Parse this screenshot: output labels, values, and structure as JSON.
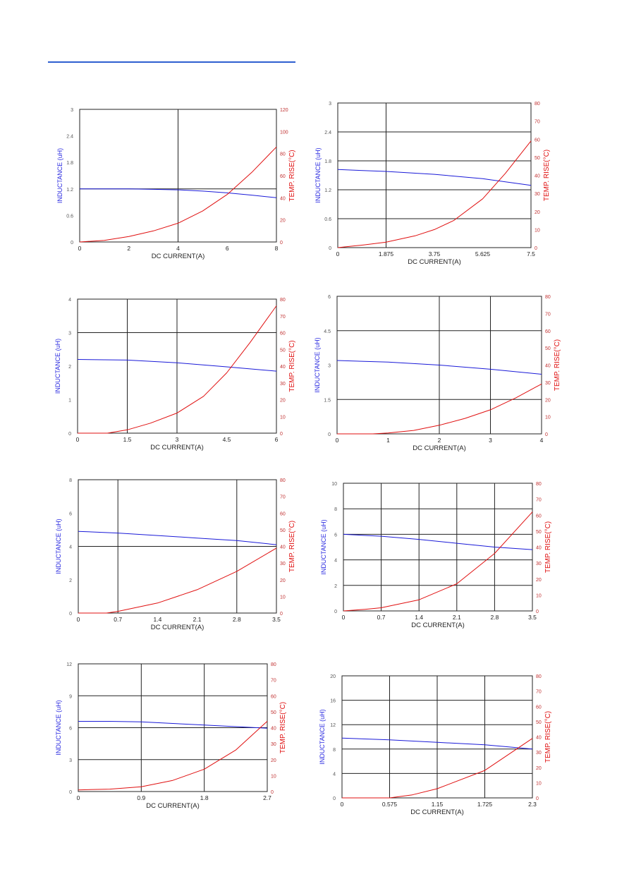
{
  "page": {
    "accent_color": "#2f5fd0"
  },
  "colors": {
    "inductance": "#1a1ad8",
    "temp": "#e01010",
    "left_label": "#2a2ae0",
    "right_label": "#e01010"
  },
  "chart_data": [
    {
      "type": "line",
      "xlabel": "DC CURRENT(A)",
      "ylabel": "INDUCTANCE (uH)",
      "y2label": "TEMP. RISE(°C)",
      "xlim": [
        0,
        8
      ],
      "ylim": [
        0,
        3
      ],
      "y2lim": [
        0,
        120
      ],
      "xticks": [
        "0",
        "2",
        "4",
        "6",
        "8"
      ],
      "yticks": [
        "0",
        "0.6",
        "1.2",
        "1.8",
        "2.4",
        "3"
      ],
      "y2ticks": [
        "0",
        "20",
        "40",
        "60",
        "80",
        "100",
        "120"
      ],
      "vgrid": [
        4
      ],
      "hgrid": [
        1.2
      ],
      "series": [
        {
          "axis": "left",
          "x": [
            0,
            1,
            2,
            3,
            4,
            5,
            6,
            7,
            8
          ],
          "values": [
            1.2,
            1.2,
            1.2,
            1.19,
            1.18,
            1.15,
            1.11,
            1.06,
            1.0
          ]
        },
        {
          "axis": "right",
          "x": [
            0,
            1,
            2,
            3,
            4,
            5,
            6,
            7,
            8
          ],
          "values": [
            0,
            1.5,
            5,
            10,
            17,
            28,
            43,
            63,
            86
          ]
        }
      ]
    },
    {
      "type": "line",
      "xlabel": "DC CURRENT(A)",
      "ylabel": "INDUCTANCE (uH)",
      "y2label": "TEMP. RISE(°C)",
      "xlim": [
        0,
        7.5
      ],
      "ylim": [
        0,
        3
      ],
      "y2lim": [
        0,
        80
      ],
      "xticks": [
        "0",
        "1.875",
        "3.75",
        "5.625",
        "7.5"
      ],
      "yticks": [
        "0",
        "0.6",
        "1.2",
        "1.8",
        "2.4",
        "3"
      ],
      "y2ticks": [
        "0",
        "10",
        "20",
        "30",
        "40",
        "50",
        "60",
        "70",
        "80"
      ],
      "vgrid": [
        1.875
      ],
      "hgrid": [
        0.6,
        1.2,
        1.8,
        2.4
      ],
      "series": [
        {
          "axis": "left",
          "x": [
            0,
            1.875,
            3.75,
            5.625,
            7.5
          ],
          "values": [
            1.62,
            1.58,
            1.52,
            1.43,
            1.29
          ]
        },
        {
          "axis": "right",
          "x": [
            0,
            1,
            1.875,
            3,
            3.75,
            4.5,
            5.625,
            6.5,
            7.5
          ],
          "values": [
            0,
            1.5,
            3,
            6.5,
            10,
            15,
            27,
            41,
            59
          ]
        }
      ]
    },
    {
      "type": "line",
      "xlabel": "DC CURRENT(A)",
      "ylabel": "INDUCTANCE (uH)",
      "y2label": "TEMP. RISE(°C)",
      "xlim": [
        0,
        6
      ],
      "ylim": [
        0,
        4
      ],
      "y2lim": [
        0,
        80
      ],
      "xticks": [
        "0",
        "1.5",
        "3",
        "4.5",
        "6"
      ],
      "yticks": [
        "0",
        "1",
        "2",
        "3",
        "4"
      ],
      "y2ticks": [
        "0",
        "10",
        "20",
        "30",
        "40",
        "50",
        "60",
        "70",
        "80"
      ],
      "vgrid": [
        1.5,
        3
      ],
      "hgrid": [
        3
      ],
      "series": [
        {
          "axis": "left",
          "x": [
            0,
            1.5,
            3,
            4.5,
            6
          ],
          "values": [
            2.2,
            2.18,
            2.1,
            1.98,
            1.85
          ]
        },
        {
          "axis": "right",
          "x": [
            0,
            0.9,
            1.5,
            2.2,
            3,
            3.8,
            4.5,
            5.2,
            6
          ],
          "values": [
            0,
            0,
            2,
            6,
            12,
            22,
            36,
            54,
            76
          ]
        }
      ]
    },
    {
      "type": "line",
      "xlabel": "DC CURRENT(A)",
      "ylabel": "INDUCTANCE (uH)",
      "y2label": "TEMP. RISE(°C)",
      "xlim": [
        0,
        4
      ],
      "ylim": [
        0,
        6
      ],
      "y2lim": [
        0,
        80
      ],
      "xticks": [
        "0",
        "1",
        "2",
        "3",
        "4"
      ],
      "yticks": [
        "0",
        "1.5",
        "3",
        "4.5",
        "6"
      ],
      "y2ticks": [
        "0",
        "10",
        "20",
        "30",
        "40",
        "50",
        "60",
        "70",
        "80"
      ],
      "vgrid": [
        2,
        3
      ],
      "hgrid": [
        1.5,
        4.5
      ],
      "series": [
        {
          "axis": "left",
          "x": [
            0,
            1,
            2,
            3,
            4
          ],
          "values": [
            3.2,
            3.13,
            3.0,
            2.82,
            2.6
          ]
        },
        {
          "axis": "right",
          "x": [
            0,
            0.7,
            1,
            1.5,
            2,
            2.5,
            3,
            3.5,
            4
          ],
          "values": [
            0,
            0,
            0.5,
            2,
            5,
            9,
            14,
            21,
            29
          ]
        }
      ]
    },
    {
      "type": "line",
      "xlabel": "DC CURRENT(A)",
      "ylabel": "INDUCTANCE (uH)",
      "y2label": "TEMP. RISE(°C)",
      "xlim": [
        0,
        3.5
      ],
      "ylim": [
        0,
        8
      ],
      "y2lim": [
        0,
        80
      ],
      "xticks": [
        "0",
        "0.7",
        "1.4",
        "2.1",
        "2.8",
        "3.5"
      ],
      "yticks": [
        "0",
        "2",
        "4",
        "6",
        "8"
      ],
      "y2ticks": [
        "0",
        "10",
        "20",
        "30",
        "40",
        "50",
        "60",
        "70",
        "80"
      ],
      "vgrid": [
        0.7,
        2.8
      ],
      "hgrid": [
        4
      ],
      "series": [
        {
          "axis": "left",
          "x": [
            0,
            0.7,
            1.4,
            2.1,
            2.8,
            3.5
          ],
          "values": [
            4.9,
            4.8,
            4.65,
            4.5,
            4.35,
            4.1
          ]
        },
        {
          "axis": "right",
          "x": [
            0,
            0.5,
            0.7,
            1.4,
            2.1,
            2.8,
            3.5
          ],
          "values": [
            0,
            0,
            1,
            6,
            14,
            25,
            39
          ]
        }
      ]
    },
    {
      "type": "line",
      "xlabel": "DC CURRENT(A)",
      "ylabel": "INDUCTANCE (uH)",
      "y2label": "TEMP. RISE(°C)",
      "xlim": [
        0,
        3.5
      ],
      "ylim": [
        0,
        10
      ],
      "y2lim": [
        0,
        80
      ],
      "xticks": [
        "0",
        "0.7",
        "1.4",
        "2.1",
        "2.8",
        "3.5"
      ],
      "yticks": [
        "0",
        "2",
        "4",
        "6",
        "8",
        "10"
      ],
      "y2ticks": [
        "0",
        "10",
        "20",
        "30",
        "40",
        "50",
        "60",
        "70",
        "80"
      ],
      "vgrid": [
        0.7,
        1.4,
        2.1,
        2.8
      ],
      "hgrid": [
        2,
        4,
        6,
        8
      ],
      "series": [
        {
          "axis": "left",
          "x": [
            0,
            0.7,
            1.4,
            2.1,
            2.8,
            3.5
          ],
          "values": [
            6.0,
            5.85,
            5.6,
            5.3,
            5.0,
            4.8
          ]
        },
        {
          "axis": "right",
          "x": [
            0,
            0.4,
            0.7,
            1.4,
            2.1,
            2.8,
            3.5
          ],
          "values": [
            0,
            1,
            2,
            7,
            17,
            36,
            62
          ]
        }
      ]
    },
    {
      "type": "line",
      "xlabel": "DC CURRENT(A)",
      "ylabel": "INDUCTANCE (uH)",
      "y2label": "TEMP. RISE(°C)",
      "xlim": [
        0,
        2.7
      ],
      "ylim": [
        0,
        12
      ],
      "y2lim": [
        0,
        80
      ],
      "xticks": [
        "0",
        "0.9",
        "1.8",
        "2.7"
      ],
      "yticks": [
        "0",
        "3",
        "6",
        "9",
        "12"
      ],
      "y2ticks": [
        "0",
        "10",
        "20",
        "30",
        "40",
        "50",
        "60",
        "70",
        "80"
      ],
      "vgrid": [
        0.9,
        1.8
      ],
      "hgrid": [
        3,
        6,
        9
      ],
      "series": [
        {
          "axis": "left",
          "x": [
            0,
            0.45,
            0.9,
            1.35,
            1.8,
            2.25,
            2.7
          ],
          "values": [
            6.6,
            6.6,
            6.55,
            6.4,
            6.25,
            6.1,
            5.95
          ]
        },
        {
          "axis": "right",
          "x": [
            0,
            0.45,
            0.9,
            1.35,
            1.8,
            2.25,
            2.7
          ],
          "values": [
            1,
            1.5,
            3,
            7,
            14,
            26,
            44
          ]
        }
      ]
    },
    {
      "type": "line",
      "xlabel": "DC CURRENT(A)",
      "ylabel": "INDUCTANCE (uH)",
      "y2label": "TEMP. RISE(°C)",
      "xlim": [
        0,
        2.3
      ],
      "ylim": [
        0,
        20
      ],
      "y2lim": [
        0,
        80
      ],
      "xticks": [
        "0",
        "0.575",
        "1.15",
        "1.725",
        "2.3"
      ],
      "yticks": [
        "0",
        "4",
        "8",
        "12",
        "16",
        "20"
      ],
      "y2ticks": [
        "0",
        "10",
        "20",
        "30",
        "40",
        "50",
        "60",
        "70",
        "80"
      ],
      "vgrid": [
        0.575,
        1.15,
        1.725
      ],
      "hgrid": [
        4,
        8,
        12,
        16
      ],
      "series": [
        {
          "axis": "left",
          "x": [
            0,
            0.575,
            1.15,
            1.725,
            2.3
          ],
          "values": [
            9.8,
            9.5,
            9.1,
            8.7,
            8.0
          ]
        },
        {
          "axis": "right",
          "x": [
            0,
            0.575,
            0.85,
            1.15,
            1.725,
            2.3
          ],
          "values": [
            0,
            0,
            2,
            6,
            18,
            39
          ]
        }
      ]
    }
  ]
}
